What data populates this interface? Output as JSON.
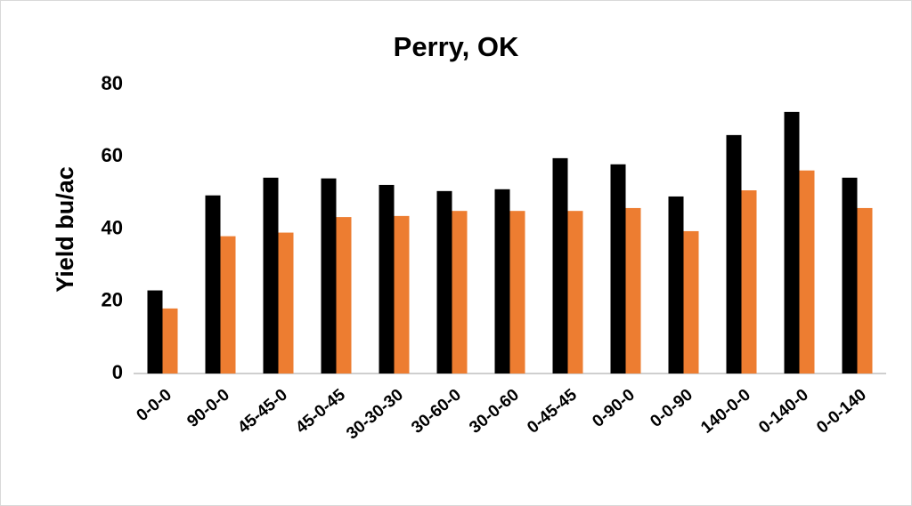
{
  "chart_data": {
    "type": "bar",
    "title": "Perry, OK",
    "y_label": "Yield bu/ac",
    "categories": [
      "0-0-0",
      "90-0-0",
      "45-45-0",
      "45-0-45",
      "30-30-30",
      "30-60-0",
      "30-0-60",
      "0-45-45",
      "0-90-0",
      "0-0-90",
      "140-0-0",
      "0-140-0",
      "0-0-140"
    ],
    "series": [
      {
        "color": "#000000",
        "values": [
          23,
          49.3,
          54.2,
          54,
          52.2,
          50.5,
          51,
          59.6,
          57.9,
          49,
          66,
          72.4,
          54.2
        ]
      },
      {
        "color": "#ed7d31",
        "values": [
          18,
          38,
          39,
          43.3,
          43.6,
          45,
          45,
          45,
          45.8,
          39.4,
          50.7,
          56.2,
          45.8
        ]
      }
    ],
    "ylim": [
      0,
      80
    ],
    "yticks": [
      0,
      20,
      40,
      60,
      80
    ],
    "grid": false
  }
}
